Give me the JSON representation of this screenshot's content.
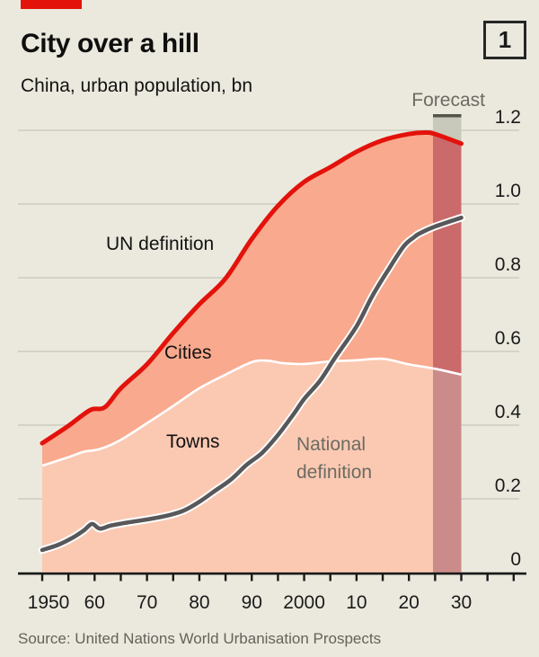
{
  "header": {
    "title": "City over a hill",
    "subtitle": "China, urban population, bn",
    "figure_number": "1"
  },
  "forecast_label": "Forecast",
  "source": "Source: United Nations World Urbanisation Prospects",
  "labels": {
    "un_definition": "UN definition",
    "cities": "Cities",
    "towns": "Towns",
    "national_line1": "National",
    "national_line2": "definition"
  },
  "axis": {
    "x_tick_labels": [
      "1950",
      "60",
      "70",
      "80",
      "90",
      "2000",
      "10",
      "20",
      "30"
    ],
    "x_tick_label_years": [
      1950,
      1960,
      1970,
      1980,
      1990,
      2000,
      2010,
      2020,
      2030
    ],
    "y_tick_labels": [
      "1.2",
      "1.0",
      "0.8",
      "0.6",
      "0.4",
      "0.2",
      "0"
    ],
    "y_tick_values": [
      1.2,
      1.0,
      0.8,
      0.6,
      0.4,
      0.2,
      0
    ]
  },
  "colors": {
    "background": "#EBE9DD",
    "brand_red": "#E3120B",
    "un_line": "#E3120B",
    "cities_fill": "#F9A98D",
    "towns_fill": "#FBC9B2",
    "cities_fill_forecast": "#CB6A6B",
    "towns_fill_forecast": "#CC8B8B",
    "forecast_cap_fill": "#C8C9BB",
    "forecast_cap_edge": "#55544A",
    "national_line": "#58585A",
    "divider_white": "#FFFFFF",
    "gridline": "#CCCCC0",
    "axis_black": "#1A1A1A",
    "grey_text": "#6B6B63"
  },
  "chart_data": {
    "type": "area",
    "title": "City over a hill",
    "subtitle": "China, urban population, bn",
    "unit": "bn people",
    "x_range": [
      1950,
      2030
    ],
    "y_range": [
      0,
      1.2
    ],
    "grid": true,
    "legend_position": "labels-on-chart",
    "forecast_band": {
      "start_year": 2024.6,
      "end_year": 2030,
      "label": "Forecast"
    },
    "series": [
      {
        "name": "UN definition",
        "role": "top of stacked area (Cities + Towns), red line",
        "years": [
          1950,
          1955,
          1957.5,
          1959.5,
          1962,
          1965,
          1970,
          1975,
          1980,
          1985,
          1990,
          1995,
          2000,
          2005,
          2010,
          2015,
          2020,
          2023,
          2025,
          2030
        ],
        "values": [
          0.351,
          0.398,
          0.425,
          0.443,
          0.449,
          0.5,
          0.565,
          0.65,
          0.728,
          0.798,
          0.905,
          0.995,
          1.06,
          1.1,
          1.142,
          1.173,
          1.19,
          1.194,
          1.19,
          1.164
        ]
      },
      {
        "name": "Towns",
        "role": "upper boundary of Towns area (white divider); Cities area lies between this and UN definition line",
        "years": [
          1950,
          1955,
          1958,
          1961,
          1965,
          1970,
          1975,
          1980,
          1985,
          1990,
          1993,
          1996,
          2000,
          2005,
          2010,
          2015,
          2020,
          2025,
          2030
        ],
        "values": [
          0.29,
          0.313,
          0.328,
          0.335,
          0.36,
          0.405,
          0.452,
          0.5,
          0.537,
          0.571,
          0.575,
          0.568,
          0.566,
          0.573,
          0.576,
          0.58,
          0.565,
          0.553,
          0.537
        ]
      },
      {
        "name": "National definition",
        "role": "grey line",
        "years": [
          1950,
          1953,
          1956,
          1958,
          1959.5,
          1961,
          1963,
          1966,
          1970,
          1974,
          1977,
          1980,
          1983,
          1986,
          1989,
          1992,
          1995,
          1998,
          2000,
          2003,
          2006,
          2010,
          2013,
          2016,
          2019,
          2021,
          2022,
          2025,
          2030
        ],
        "values": [
          0.061,
          0.075,
          0.096,
          0.115,
          0.132,
          0.119,
          0.127,
          0.135,
          0.144,
          0.155,
          0.168,
          0.192,
          0.222,
          0.252,
          0.292,
          0.325,
          0.373,
          0.43,
          0.471,
          0.52,
          0.585,
          0.668,
          0.75,
          0.82,
          0.885,
          0.91,
          0.92,
          0.939,
          0.963
        ]
      }
    ]
  }
}
